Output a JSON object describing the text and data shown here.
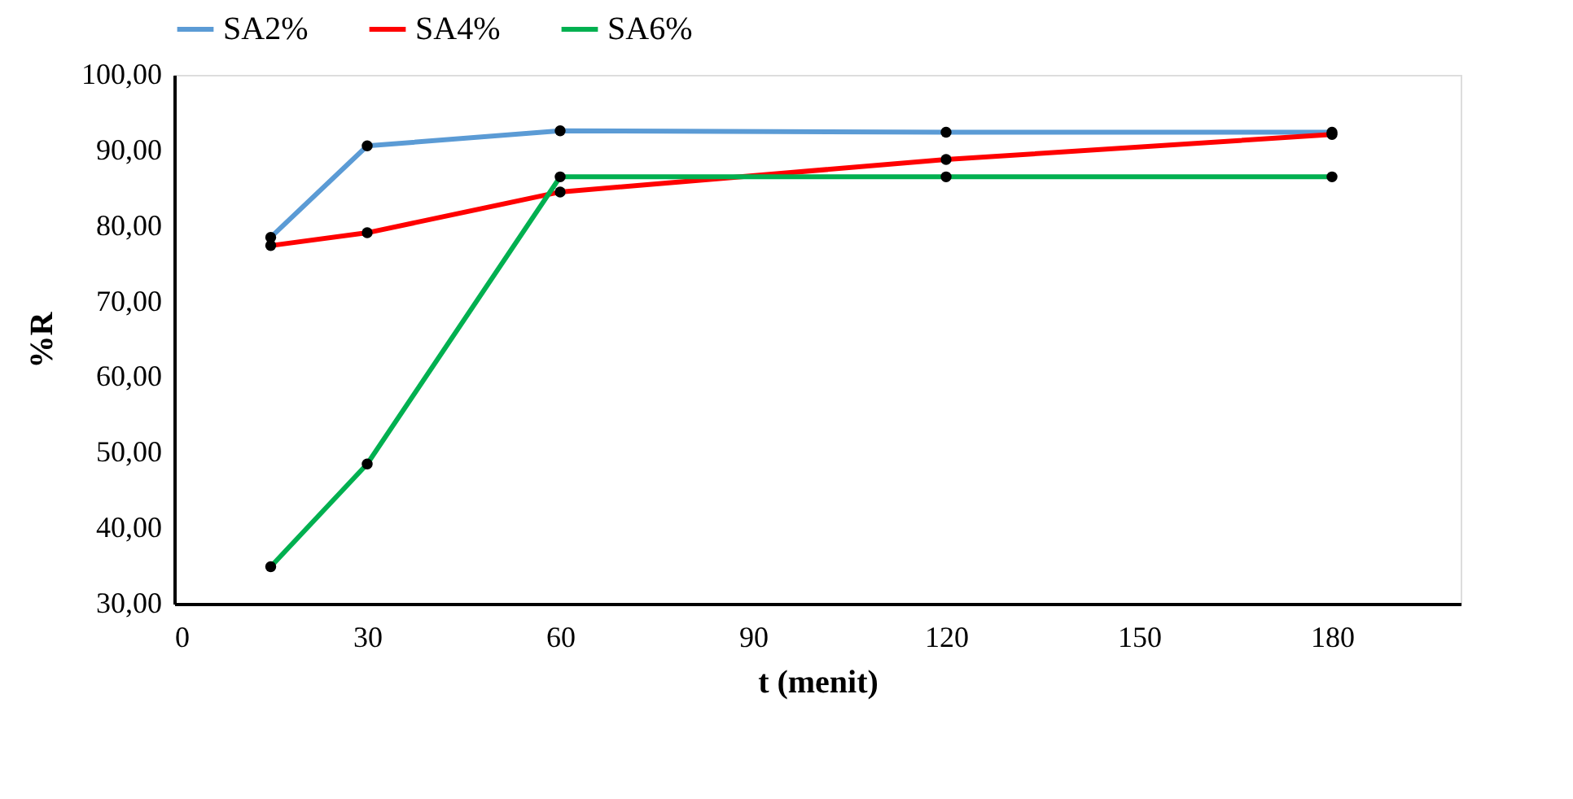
{
  "chart_data": {
    "type": "line",
    "xlabel": "t (menit)",
    "ylabel": "%R",
    "x": [
      15,
      30,
      60,
      120,
      180
    ],
    "series": [
      {
        "name": "SA2%",
        "color": "#5b9bd5",
        "values": [
          78.5,
          90.6,
          92.6,
          92.4,
          92.4
        ]
      },
      {
        "name": "SA4%",
        "color": "#ff0000",
        "values": [
          77.4,
          79.1,
          84.5,
          88.8,
          92.1
        ]
      },
      {
        "name": "SA6%",
        "color": "#00b050",
        "values": [
          34.9,
          48.5,
          86.5,
          86.5,
          86.5
        ]
      }
    ],
    "xlim": [
      0,
      200
    ],
    "xticks": [
      0,
      30,
      60,
      90,
      120,
      150,
      180
    ],
    "ylim": [
      30,
      100
    ],
    "yticks": [
      {
        "value": 30,
        "label": "30,00"
      },
      {
        "value": 40,
        "label": "40,00"
      },
      {
        "value": 50,
        "label": "50,00"
      },
      {
        "value": 60,
        "label": "60,00"
      },
      {
        "value": 70,
        "label": "70,00"
      },
      {
        "value": 80,
        "label": "80,00"
      },
      {
        "value": 90,
        "label": "90,00"
      },
      {
        "value": 100,
        "label": "100,00"
      }
    ],
    "legend": "top",
    "grid": false,
    "marker": "circle",
    "line_style": "solid"
  }
}
